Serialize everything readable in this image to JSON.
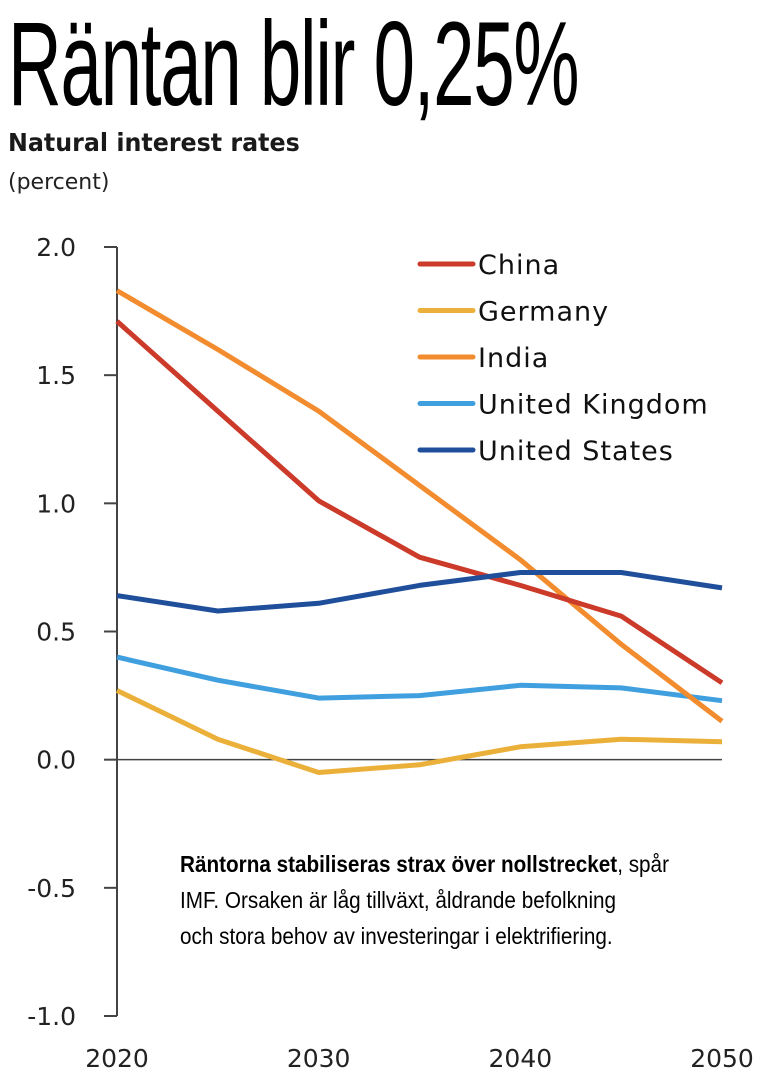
{
  "headline": "Räntan blir 0,25%",
  "annotation": {
    "bold": "Räntorna stabiliseras strax över nollstrecket",
    "line1_rest": ", spår",
    "line2": "IMF. Orsaken är låg tillväxt, åldrande befolkning",
    "line3": "och stora behov av investeringar i elektrifiering."
  },
  "chart_data": {
    "type": "line",
    "title": "Natural interest rates",
    "subtitle": "(percent)",
    "xlabel": "",
    "ylabel": "percent",
    "x": [
      2020,
      2025,
      2030,
      2035,
      2040,
      2045,
      2050
    ],
    "xlim": [
      2020,
      2050
    ],
    "ylim": [
      -1.0,
      2.0
    ],
    "x_ticks": [
      2020,
      2030,
      2040,
      2050
    ],
    "x_tick_labels": [
      "2020",
      "2030",
      "2040",
      "2050"
    ],
    "y_ticks": [
      2.0,
      1.5,
      1.0,
      0.5,
      0.0,
      -0.5,
      -1.0
    ],
    "y_tick_labels": [
      "2.0",
      "1.5",
      "1.0",
      "0.5",
      "0.0",
      "-0.5",
      "-1.0"
    ],
    "grid": false,
    "zero_line": true,
    "legend_position": "top-right",
    "series": [
      {
        "name": "China",
        "color": "#CC3A2A",
        "values": [
          1.71,
          1.36,
          1.01,
          0.79,
          0.68,
          0.56,
          0.3
        ]
      },
      {
        "name": "Germany",
        "color": "#EBB03A",
        "values": [
          0.27,
          0.08,
          -0.05,
          -0.02,
          0.05,
          0.08,
          0.07
        ]
      },
      {
        "name": "India",
        "color": "#F28C2E",
        "values": [
          1.83,
          1.6,
          1.36,
          1.07,
          0.78,
          0.45,
          0.15
        ]
      },
      {
        "name": "United Kingdom",
        "color": "#3F9FDF",
        "values": [
          0.4,
          0.31,
          0.24,
          0.25,
          0.29,
          0.28,
          0.23
        ]
      },
      {
        "name": "United States",
        "color": "#1F4E9B",
        "values": [
          0.64,
          0.58,
          0.61,
          0.68,
          0.73,
          0.73,
          0.67
        ]
      }
    ]
  }
}
